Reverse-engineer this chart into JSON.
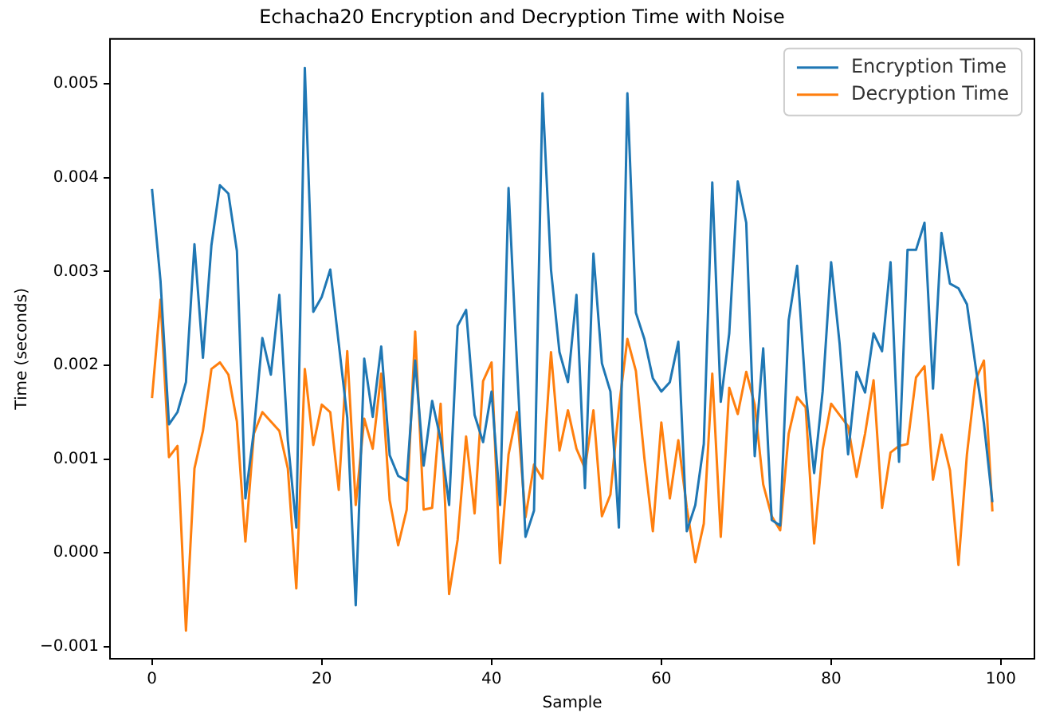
{
  "chart_data": {
    "type": "line",
    "title": "Echacha20 Encryption and Decryption Time with Noise",
    "xlabel": "Sample",
    "ylabel": "Time (seconds)",
    "x": [
      0,
      1,
      2,
      3,
      4,
      5,
      6,
      7,
      8,
      9,
      10,
      11,
      12,
      13,
      14,
      15,
      16,
      17,
      18,
      19,
      20,
      21,
      22,
      23,
      24,
      25,
      26,
      27,
      28,
      29,
      30,
      31,
      32,
      33,
      34,
      35,
      36,
      37,
      38,
      39,
      40,
      41,
      42,
      43,
      44,
      45,
      46,
      47,
      48,
      49,
      50,
      51,
      52,
      53,
      54,
      55,
      56,
      57,
      58,
      59,
      60,
      61,
      62,
      63,
      64,
      65,
      66,
      67,
      68,
      69,
      70,
      71,
      72,
      73,
      74,
      75,
      76,
      77,
      78,
      79,
      80,
      81,
      82,
      83,
      84,
      85,
      86,
      87,
      88,
      89,
      90,
      91,
      92,
      93,
      94,
      95,
      96,
      97,
      98,
      99
    ],
    "series": [
      {
        "name": "Encryption Time",
        "color": "#1f77b4",
        "values": [
          0.00388,
          0.0029,
          0.00137,
          0.0015,
          0.00182,
          0.00329,
          0.00208,
          0.00328,
          0.00392,
          0.00383,
          0.00322,
          0.00058,
          0.0013,
          0.00229,
          0.0019,
          0.00275,
          0.0012,
          0.00027,
          0.00517,
          0.00257,
          0.00273,
          0.00302,
          0.00223,
          0.00144,
          -0.00056,
          0.00207,
          0.00145,
          0.0022,
          0.00104,
          0.00082,
          0.00077,
          0.00205,
          0.00093,
          0.00162,
          0.00121,
          0.00051,
          0.00242,
          0.00259,
          0.00147,
          0.00118,
          0.00172,
          0.00051,
          0.00389,
          0.002,
          0.00017,
          0.00045,
          0.0049,
          0.00302,
          0.00214,
          0.00182,
          0.00275,
          0.00069,
          0.00319,
          0.00202,
          0.00172,
          0.00027,
          0.0049,
          0.00256,
          0.00228,
          0.00186,
          0.00172,
          0.00182,
          0.00225,
          0.00023,
          0.00051,
          0.00116,
          0.00395,
          0.00161,
          0.00234,
          0.00396,
          0.00352,
          0.00103,
          0.00218,
          0.00035,
          0.00029,
          0.00248,
          0.00306,
          0.00172,
          0.00085,
          0.00172,
          0.0031,
          0.00223,
          0.00105,
          0.00193,
          0.00171,
          0.00234,
          0.00215,
          0.0031,
          0.00097,
          0.00323,
          0.00323,
          0.00352,
          0.00175,
          0.00341,
          0.00287,
          0.00282,
          0.00265,
          0.002,
          0.00138,
          0.00054
        ]
      },
      {
        "name": "Decryption Time",
        "color": "#ff7f0e",
        "values": [
          0.00165,
          0.0027,
          0.00102,
          0.00114,
          -0.00083,
          0.0009,
          0.0013,
          0.00196,
          0.00203,
          0.0019,
          0.0014,
          0.00012,
          0.00127,
          0.0015,
          0.0014,
          0.0013,
          0.0009,
          -0.00038,
          0.00196,
          0.00115,
          0.00158,
          0.0015,
          0.00067,
          0.00215,
          0.00051,
          0.00143,
          0.00111,
          0.00191,
          0.00056,
          8e-05,
          0.00046,
          0.00236,
          0.00046,
          0.00048,
          0.00159,
          -0.00044,
          0.00014,
          0.00124,
          0.00042,
          0.00183,
          0.00203,
          -0.00011,
          0.00105,
          0.0015,
          0.00038,
          0.00094,
          0.00079,
          0.00214,
          0.00109,
          0.00152,
          0.00111,
          0.0009,
          0.00152,
          0.00039,
          0.00062,
          0.00155,
          0.00228,
          0.00194,
          0.00101,
          0.00023,
          0.00139,
          0.00058,
          0.0012,
          0.00048,
          -0.0001,
          0.00031,
          0.00191,
          0.00017,
          0.00176,
          0.00148,
          0.00193,
          0.00158,
          0.00073,
          0.00039,
          0.00024,
          0.00127,
          0.00166,
          0.00155,
          0.0001,
          0.0011,
          0.00159,
          0.00147,
          0.00135,
          0.00081,
          0.00127,
          0.00184,
          0.00048,
          0.00107,
          0.00114,
          0.00116,
          0.00187,
          0.00199,
          0.00078,
          0.00126,
          0.00088,
          -0.00013,
          0.00105,
          0.00184,
          0.00205,
          0.00044
        ]
      }
    ],
    "xlim": [
      -4.95,
      103.95
    ],
    "xticks": [
      0,
      20,
      40,
      60,
      80,
      100
    ],
    "ylim": [
      -0.00113,
      0.00548
    ],
    "yticks": [
      {
        "value": -0.001,
        "label": "−0.001"
      },
      {
        "value": 0,
        "label": "0.000"
      },
      {
        "value": 0.001,
        "label": "0.001"
      },
      {
        "value": 0.002,
        "label": "0.002"
      },
      {
        "value": 0.003,
        "label": "0.003"
      },
      {
        "value": 0.004,
        "label": "0.004"
      },
      {
        "value": 0.005,
        "label": "0.005"
      }
    ],
    "grid": false,
    "legend": "top right",
    "marker": "none",
    "line_style": "solid"
  }
}
